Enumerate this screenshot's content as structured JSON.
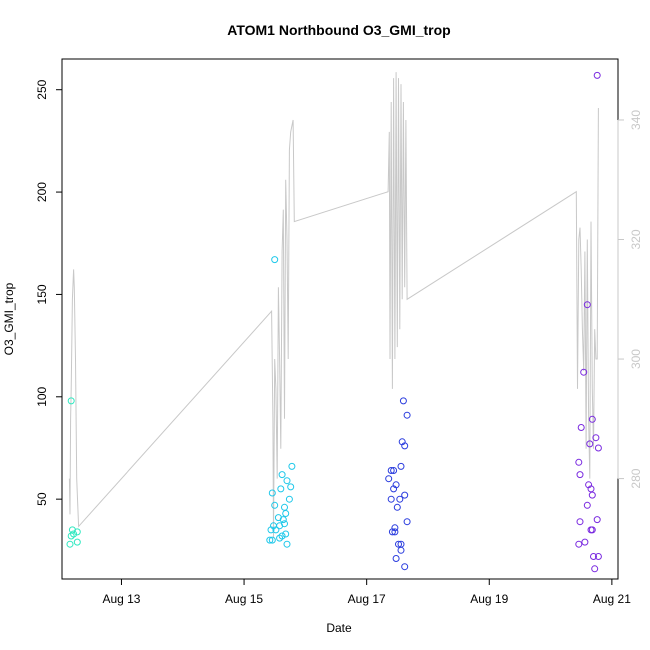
{
  "chart_data": {
    "type": "scatter",
    "title": "ATOM1 Northbound O3_GMI_trop",
    "xlabel": "Date",
    "ylabel": "O3_GMI_trop",
    "x_ticks": [
      {
        "day": 13,
        "label": "Aug 13"
      },
      {
        "day": 15,
        "label": "Aug 15"
      },
      {
        "day": 17,
        "label": "Aug 17"
      },
      {
        "day": 19,
        "label": "Aug 19"
      },
      {
        "day": 21,
        "label": "Aug 21"
      }
    ],
    "xlim": [
      12.03,
      21.1
    ],
    "y_ticks": [
      50,
      100,
      150,
      200,
      250
    ],
    "ylim": [
      11,
      265
    ],
    "y2_ticks": [
      280,
      300,
      320,
      340
    ],
    "y2lim": [
      263.2,
      350.2
    ],
    "y2_color": "#c8c8c8",
    "scatter_series": [
      {
        "color": "#2ee8c0",
        "points": [
          [
            12.18,
            98
          ],
          [
            12.18,
            32
          ],
          [
            12.2,
            35
          ],
          [
            12.22,
            33
          ],
          [
            12.28,
            34
          ],
          [
            12.16,
            28
          ],
          [
            12.28,
            29
          ]
        ]
      },
      {
        "color": "#1ec8ea",
        "points": [
          [
            15.5,
            167
          ],
          [
            15.5,
            47
          ],
          [
            15.62,
            62
          ],
          [
            15.78,
            66
          ],
          [
            15.7,
            59
          ],
          [
            15.76,
            56
          ],
          [
            15.6,
            55
          ],
          [
            15.74,
            50
          ],
          [
            15.66,
            46
          ],
          [
            15.68,
            43
          ],
          [
            15.64,
            40
          ],
          [
            15.56,
            41
          ],
          [
            15.46,
            53
          ],
          [
            15.58,
            37
          ],
          [
            15.44,
            35
          ],
          [
            15.48,
            37
          ],
          [
            15.52,
            35
          ],
          [
            15.66,
            38
          ],
          [
            15.58,
            31
          ],
          [
            15.62,
            32
          ],
          [
            15.68,
            33
          ],
          [
            15.42,
            30
          ],
          [
            15.46,
            30
          ],
          [
            15.7,
            28
          ]
        ]
      },
      {
        "color": "#2a3cde",
        "points": [
          [
            17.6,
            98
          ],
          [
            17.66,
            91
          ],
          [
            17.58,
            78
          ],
          [
            17.62,
            76
          ],
          [
            17.56,
            66
          ],
          [
            17.4,
            64
          ],
          [
            17.44,
            64
          ],
          [
            17.36,
            60
          ],
          [
            17.48,
            57
          ],
          [
            17.44,
            55
          ],
          [
            17.62,
            52
          ],
          [
            17.4,
            50
          ],
          [
            17.54,
            50
          ],
          [
            17.5,
            46
          ],
          [
            17.66,
            39
          ],
          [
            17.46,
            36
          ],
          [
            17.42,
            34
          ],
          [
            17.46,
            34
          ],
          [
            17.52,
            28
          ],
          [
            17.56,
            28
          ],
          [
            17.56,
            25
          ],
          [
            17.48,
            21
          ],
          [
            17.62,
            17
          ]
        ]
      },
      {
        "color": "#7a2ae0",
        "points": [
          [
            20.76,
            257
          ],
          [
            20.6,
            145
          ],
          [
            20.54,
            112
          ],
          [
            20.5,
            85
          ],
          [
            20.68,
            89
          ],
          [
            20.74,
            80
          ],
          [
            20.64,
            77
          ],
          [
            20.78,
            75
          ],
          [
            20.46,
            68
          ],
          [
            20.48,
            62
          ],
          [
            20.62,
            57
          ],
          [
            20.66,
            55
          ],
          [
            20.68,
            52
          ],
          [
            20.6,
            47
          ],
          [
            20.76,
            40
          ],
          [
            20.48,
            39
          ],
          [
            20.66,
            35
          ],
          [
            20.68,
            35
          ],
          [
            20.46,
            28
          ],
          [
            20.56,
            29
          ],
          [
            20.7,
            22
          ],
          [
            20.78,
            22
          ],
          [
            20.72,
            16
          ]
        ]
      }
    ],
    "line_series": {
      "color": "#c8c8c8",
      "axis": "right",
      "points": [
        [
          12.15,
          280
        ],
        [
          12.16,
          274
        ],
        [
          12.17,
          290
        ],
        [
          12.18,
          295
        ],
        [
          12.2,
          310
        ],
        [
          12.22,
          315
        ],
        [
          12.23,
          312
        ],
        [
          12.25,
          300
        ],
        [
          12.27,
          280
        ],
        [
          12.3,
          272
        ],
        [
          15.45,
          308
        ],
        [
          15.47,
          290
        ],
        [
          15.48,
          270
        ],
        [
          15.5,
          300
        ],
        [
          15.52,
          295
        ],
        [
          15.54,
          280
        ],
        [
          15.56,
          312
        ],
        [
          15.58,
          300
        ],
        [
          15.6,
          285
        ],
        [
          15.62,
          318
        ],
        [
          15.64,
          325
        ],
        [
          15.66,
          290
        ],
        [
          15.68,
          330
        ],
        [
          15.7,
          320
        ],
        [
          15.72,
          300
        ],
        [
          15.74,
          335
        ],
        [
          15.76,
          338
        ],
        [
          15.8,
          340
        ],
        [
          15.82,
          323
        ],
        [
          17.35,
          328
        ],
        [
          17.37,
          338
        ],
        [
          17.38,
          300
        ],
        [
          17.4,
          343
        ],
        [
          17.42,
          295
        ],
        [
          17.44,
          347
        ],
        [
          17.46,
          300
        ],
        [
          17.48,
          348
        ],
        [
          17.5,
          302
        ],
        [
          17.52,
          347
        ],
        [
          17.54,
          305
        ],
        [
          17.56,
          346
        ],
        [
          17.58,
          310
        ],
        [
          17.6,
          343
        ],
        [
          17.62,
          312
        ],
        [
          17.64,
          340
        ],
        [
          17.66,
          310
        ],
        [
          20.42,
          328
        ],
        [
          20.44,
          295
        ],
        [
          20.46,
          320
        ],
        [
          20.48,
          322
        ],
        [
          20.5,
          315
        ],
        [
          20.52,
          305
        ],
        [
          20.54,
          298
        ],
        [
          20.56,
          318
        ],
        [
          20.58,
          285
        ],
        [
          20.6,
          320
        ],
        [
          20.62,
          290
        ],
        [
          20.64,
          280
        ],
        [
          20.66,
          323
        ],
        [
          20.68,
          295
        ],
        [
          20.7,
          285
        ],
        [
          20.72,
          305
        ],
        [
          20.74,
          300
        ],
        [
          20.76,
          300
        ],
        [
          20.78,
          342
        ]
      ]
    }
  }
}
